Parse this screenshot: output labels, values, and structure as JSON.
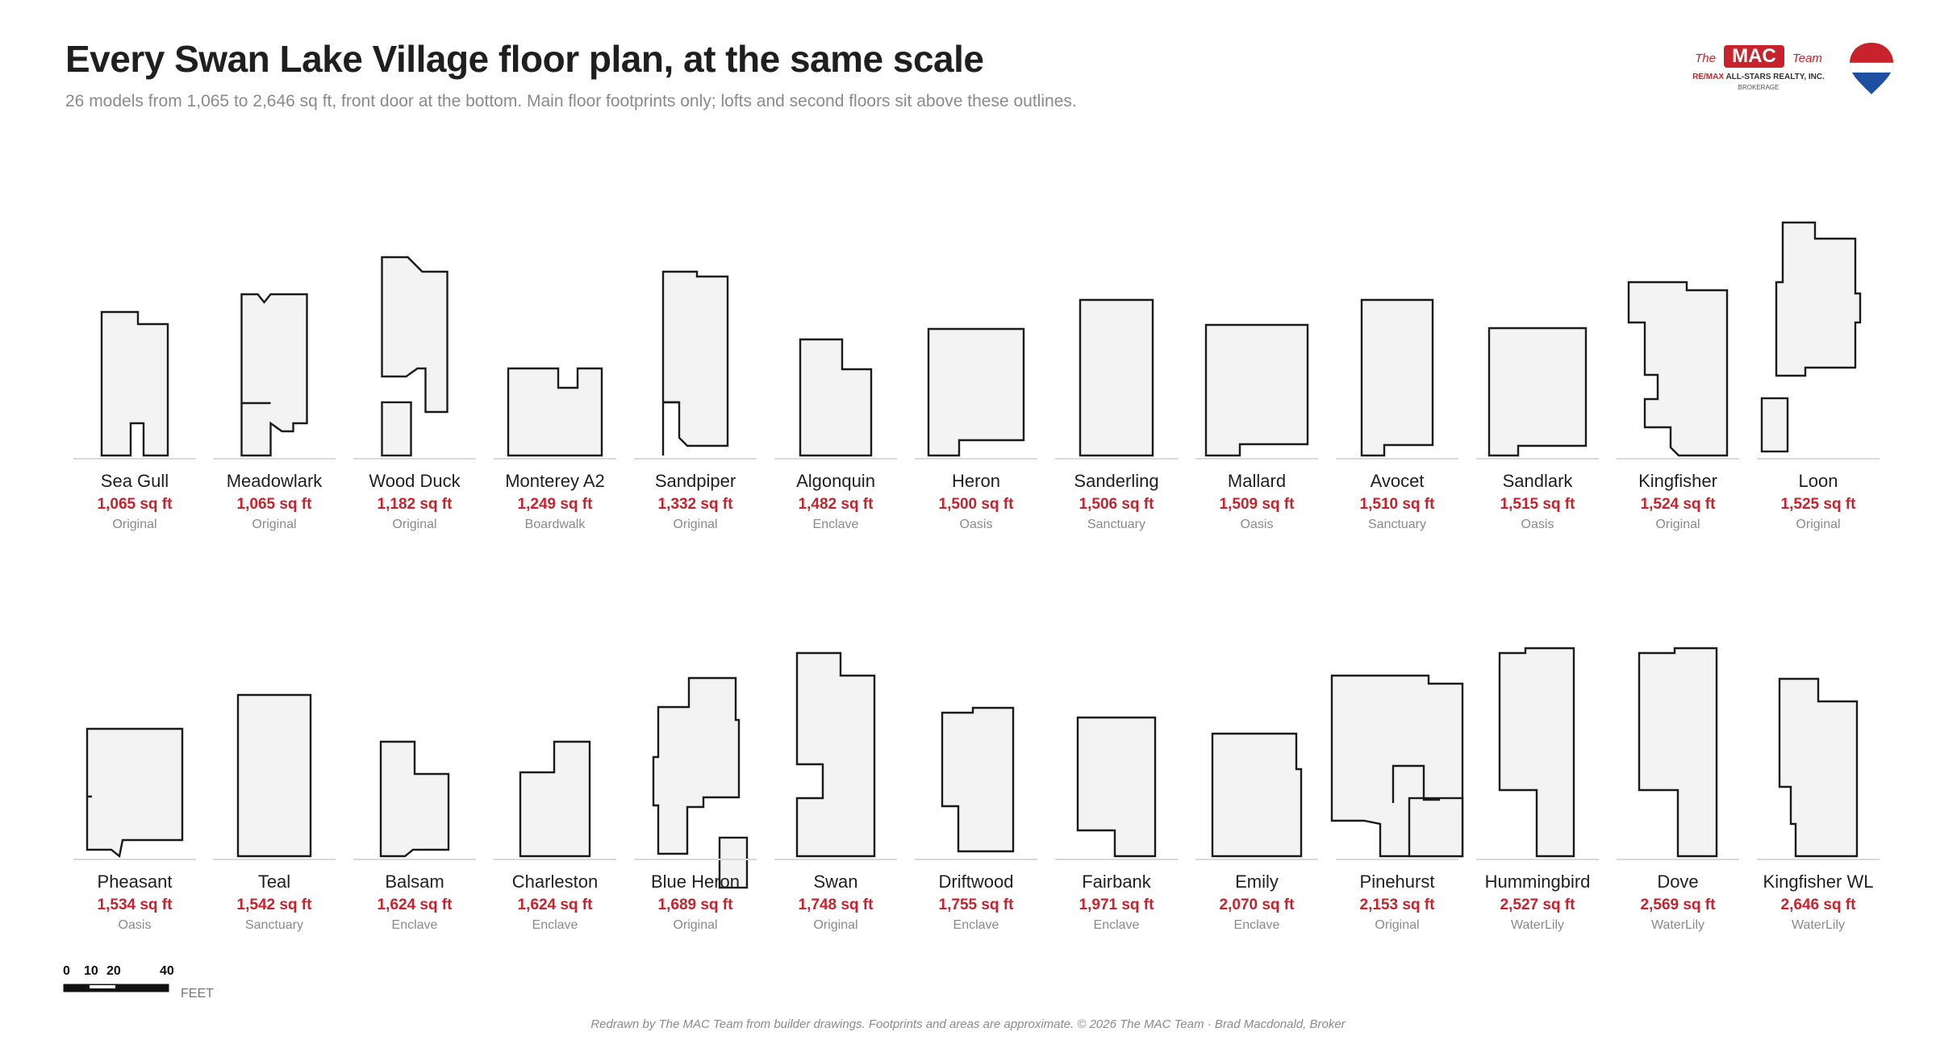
{
  "title": "Every Swan Lake Village floor plan, at the same scale",
  "subtitle": "26 models from 1,065 to 2,646 sq ft, front door at the bottom. Main floor footprints only; lofts and second floors sit above these outlines.",
  "brand": {
    "the_left": "The",
    "mac": "MAC",
    "team": "Team",
    "remax": "RE/MAX",
    "realty": "ALL-STARS REALTY, INC.",
    "brokerage": "BROKERAGE"
  },
  "colors": {
    "area_red": "#c8232c",
    "outline": "#1a1a1a",
    "fill": "#f3f3f3",
    "baseline": "#d9d9d9",
    "muted": "#8a8a8a"
  },
  "scale": {
    "ticks": [
      "0",
      "10",
      "20",
      "40"
    ],
    "unit": "FEET"
  },
  "footer": "Redrawn by The MAC Team from builder drawings. Footprints and areas are approximate. © 2026 The MAC Team · Brad Macdonald, Broker",
  "rows": [
    [
      {
        "name": "Sea Gull",
        "area": "1,065 sq ft",
        "collection": "Original"
      },
      {
        "name": "Meadowlark",
        "area": "1,065 sq ft",
        "collection": "Original"
      },
      {
        "name": "Wood Duck",
        "area": "1,182 sq ft",
        "collection": "Original"
      },
      {
        "name": "Monterey A2",
        "area": "1,249 sq ft",
        "collection": "Boardwalk"
      },
      {
        "name": "Sandpiper",
        "area": "1,332 sq ft",
        "collection": "Original"
      },
      {
        "name": "Algonquin",
        "area": "1,482 sq ft",
        "collection": "Enclave"
      },
      {
        "name": "Heron",
        "area": "1,500 sq ft",
        "collection": "Oasis"
      },
      {
        "name": "Sanderling",
        "area": "1,506 sq ft",
        "collection": "Sanctuary"
      },
      {
        "name": "Mallard",
        "area": "1,509 sq ft",
        "collection": "Oasis"
      },
      {
        "name": "Avocet",
        "area": "1,510 sq ft",
        "collection": "Sanctuary"
      },
      {
        "name": "Sandlark",
        "area": "1,515 sq ft",
        "collection": "Oasis"
      },
      {
        "name": "Kingfisher",
        "area": "1,524 sq ft",
        "collection": "Original"
      },
      {
        "name": "Loon",
        "area": "1,525 sq ft",
        "collection": "Original"
      }
    ],
    [
      {
        "name": "Pheasant",
        "area": "1,534 sq ft",
        "collection": "Oasis"
      },
      {
        "name": "Teal",
        "area": "1,542 sq ft",
        "collection": "Sanctuary"
      },
      {
        "name": "Balsam",
        "area": "1,624 sq ft",
        "collection": "Enclave"
      },
      {
        "name": "Charleston",
        "area": "1,624 sq ft",
        "collection": "Enclave"
      },
      {
        "name": "Blue Heron",
        "area": "1,689 sq ft",
        "collection": "Original"
      },
      {
        "name": "Swan",
        "area": "1,748 sq ft",
        "collection": "Original"
      },
      {
        "name": "Driftwood",
        "area": "1,755 sq ft",
        "collection": "Enclave"
      },
      {
        "name": "Fairbank",
        "area": "1,971 sq ft",
        "collection": "Enclave"
      },
      {
        "name": "Emily",
        "area": "2,070 sq ft",
        "collection": "Enclave"
      },
      {
        "name": "Pinehurst",
        "area": "2,153 sq ft",
        "collection": "Original"
      },
      {
        "name": "Hummingbird",
        "area": "2,527 sq ft",
        "collection": "WaterLily"
      },
      {
        "name": "Dove",
        "area": "2,569 sq ft",
        "collection": "WaterLily"
      },
      {
        "name": "Kingfisher WL",
        "area": "2,646 sq ft",
        "collection": "WaterLily"
      }
    ]
  ]
}
